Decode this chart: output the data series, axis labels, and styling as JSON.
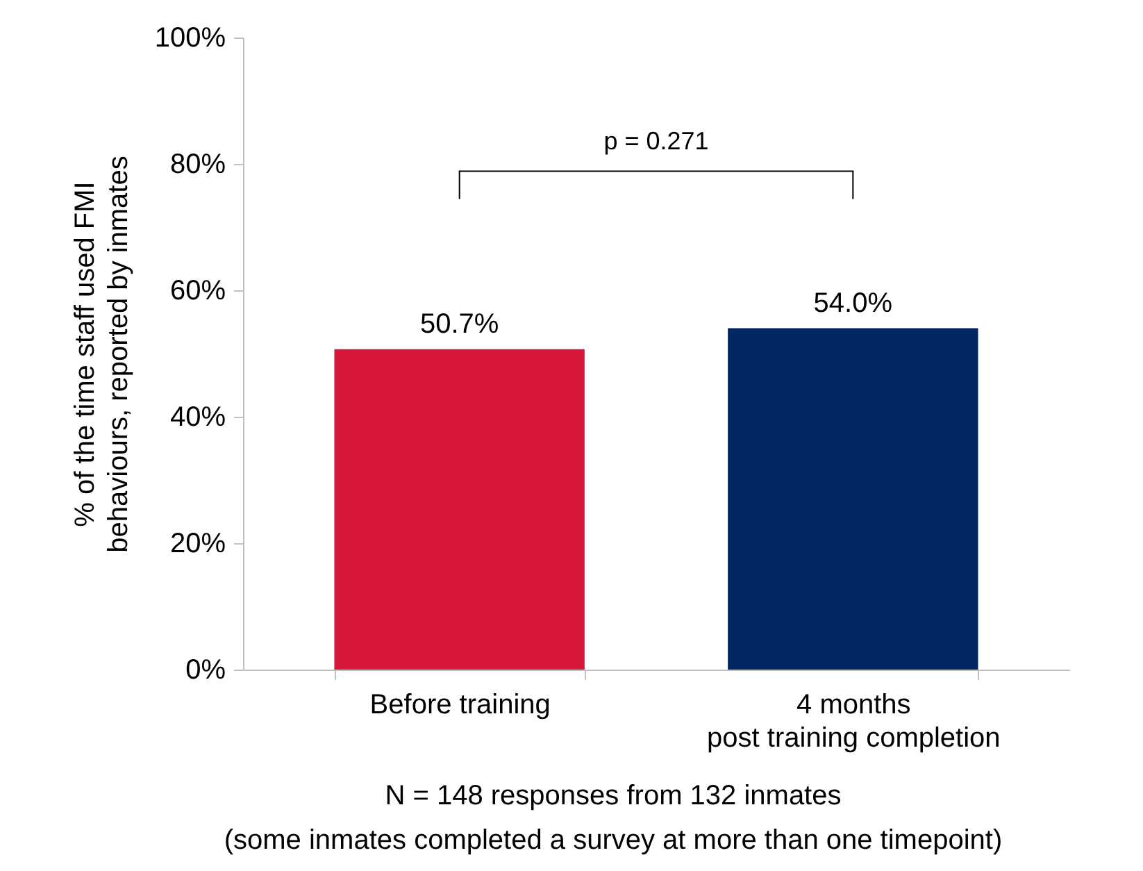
{
  "chart_data": {
    "type": "bar",
    "ylabel": "% of the time staff used FMI\nbehaviours, reported by inmates",
    "categories": [
      "Before training",
      "4 months\npost training completion"
    ],
    "values": [
      50.7,
      54.0
    ],
    "colors": [
      "#d7183b",
      "#002664"
    ],
    "value_labels": [
      "50.7%",
      "54.0%"
    ],
    "ylim": [
      0,
      100
    ],
    "yticks": [
      {
        "value": 0,
        "label": "0%"
      },
      {
        "value": 20,
        "label": "20%"
      },
      {
        "value": 40,
        "label": "40%"
      },
      {
        "value": 60,
        "label": "60%"
      },
      {
        "value": 80,
        "label": "80%"
      },
      {
        "value": 100,
        "label": "100%"
      }
    ],
    "grid": false,
    "legend": false,
    "annotations": [
      "p = 0.271",
      "N = 148 responses from 132 inmates",
      "(some inmates completed a survey at more than one timepoint)"
    ]
  }
}
